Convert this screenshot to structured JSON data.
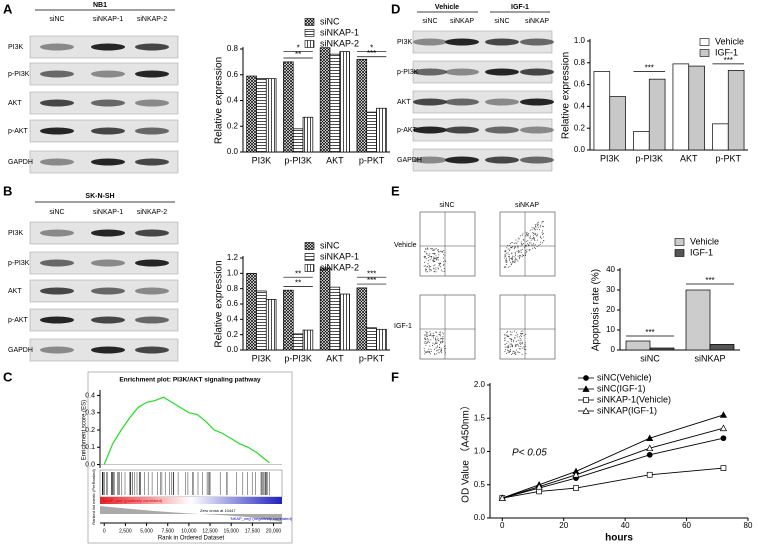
{
  "blots": [
    {
      "panel": "A",
      "header": [
        "NB1"
      ],
      "lanes": [
        "siNC",
        "siNKAP-1",
        "siNKAP-2"
      ],
      "rows": [
        "PI3K",
        "p-PI3K",
        "AKT",
        "p-AKT",
        "GAPDH"
      ]
    },
    {
      "panel": "B",
      "header": [
        "SK-N-SH"
      ],
      "lanes": [
        "siNC",
        "siNKAP-1",
        "siNKAP-2"
      ],
      "rows": [
        "PI3K",
        "p-PI3K",
        "AKT",
        "p-AKT",
        "GAPDH"
      ]
    },
    {
      "panel": "D",
      "header": [
        "Vehicle",
        "IGF-1"
      ],
      "lanes": [
        "siNC",
        "siNKAP",
        "siNC",
        "siNKAP"
      ],
      "rows": [
        "PI3K",
        "p-PI3K",
        "AKT",
        "p-AKT",
        "GAPDH"
      ]
    }
  ],
  "flow": {
    "panel": "E",
    "columns": [
      "siNC",
      "siNKAP"
    ],
    "rows": [
      "Vehicle",
      "IGF-1"
    ]
  },
  "chart_data": [
    {
      "type": "bar",
      "y_label": "Relative expression",
      "categories": [
        "PI3K",
        "p-PI3K",
        "AKT",
        "p-PKT"
      ],
      "series": [
        {
          "name": "siNC",
          "color": "#ffffff",
          "pattern": "crosshatch",
          "values": [
            0.59,
            0.7,
            0.81,
            0.72
          ]
        },
        {
          "name": "siNKAP-1",
          "color": "#ffffff",
          "pattern": "horizontal",
          "values": [
            0.57,
            0.18,
            0.76,
            0.31
          ]
        },
        {
          "name": "siNKAP-2",
          "color": "#ffffff",
          "pattern": "vertical",
          "values": [
            0.57,
            0.27,
            0.78,
            0.34
          ]
        }
      ],
      "ylim": [
        0,
        0.8
      ],
      "yticks": [
        {
          "value": 0,
          "label": "0.0"
        },
        {
          "value": 0.2,
          "label": "0.2"
        },
        {
          "value": 0.4,
          "label": "0.4"
        },
        {
          "value": 0.6,
          "label": "0.6"
        },
        {
          "value": 0.8,
          "label": "0.8"
        }
      ],
      "annotations": [
        "*",
        "**",
        "*",
        "***"
      ]
    },
    {
      "type": "bar",
      "y_label": "Relative expression",
      "categories": [
        "PI3K",
        "p-PI3K",
        "AKT",
        "p-PKT"
      ],
      "series": [
        {
          "name": "siNC",
          "color": "#ffffff",
          "pattern": "crosshatch",
          "values": [
            1.0,
            0.78,
            1.07,
            0.81
          ]
        },
        {
          "name": "siNKAP-1",
          "color": "#ffffff",
          "pattern": "horizontal",
          "values": [
            0.77,
            0.21,
            0.82,
            0.29
          ]
        },
        {
          "name": "siNKAP-2",
          "color": "#ffffff",
          "pattern": "vertical",
          "values": [
            0.66,
            0.26,
            0.73,
            0.27
          ]
        }
      ],
      "ylim": [
        0,
        1.2
      ],
      "yticks": [
        {
          "value": 0,
          "label": "0.0"
        },
        {
          "value": 0.2,
          "label": "0.2"
        },
        {
          "value": 0.4,
          "label": "0.4"
        },
        {
          "value": 0.6,
          "label": "0.6"
        },
        {
          "value": 0.8,
          "label": "0.8"
        },
        {
          "value": 1,
          "label": "1.0"
        },
        {
          "value": 1.2,
          "label": "1.2"
        }
      ],
      "annotations": [
        "**",
        "**",
        "***",
        "***"
      ]
    },
    {
      "type": "bar",
      "y_label": "Relative expression",
      "categories": [
        "PI3K",
        "p-PI3K",
        "AKT",
        "p-PKT"
      ],
      "series": [
        {
          "name": "Vehicle",
          "color": "#ffffff",
          "values": [
            0.72,
            0.17,
            0.79,
            0.24
          ]
        },
        {
          "name": "IGF-1",
          "color": "#c8c8c8",
          "values": [
            0.49,
            0.65,
            0.77,
            0.73
          ]
        }
      ],
      "ylim": [
        0,
        1.0
      ],
      "yticks": [
        {
          "value": 0,
          "label": "0.0"
        },
        {
          "value": 0.2,
          "label": "0.2"
        },
        {
          "value": 0.4,
          "label": "0.4"
        },
        {
          "value": 0.6,
          "label": "0.6"
        },
        {
          "value": 0.8,
          "label": "0.8"
        },
        {
          "value": 1,
          "label": "1.0"
        }
      ],
      "annotations": [
        "***",
        "***"
      ]
    },
    {
      "type": "bar",
      "y_label": "Apoptosis rate (%)",
      "categories": [
        "siNC",
        "siNKAP"
      ],
      "series": [
        {
          "name": "Vehicle",
          "color": "#cccccc",
          "values": [
            4.5,
            30
          ]
        },
        {
          "name": "IGF-1",
          "color": "#555555",
          "values": [
            1,
            2.8
          ]
        }
      ],
      "ylim": [
        0,
        40
      ],
      "yticks": [
        0,
        10,
        20,
        30,
        40
      ],
      "annotations": [
        "***",
        "***"
      ]
    },
    {
      "type": "line",
      "panel": "C",
      "title": "Enrichment plot: PI3K/AKT signaling pathway",
      "y_label": "Enrichment score (ES)",
      "x_label": "Rank in Ordered Dataset",
      "metric_label": "Ranked list metric (PreRanked)",
      "texts": [
        "'NKAP_pos' (positively correlated)",
        "Zero cross at 10447",
        "'NKAP_neg' (negatively correlated)"
      ],
      "x": [
        0,
        1000,
        2000,
        3000,
        4000,
        5000,
        6000,
        7000,
        8000,
        9000,
        10000,
        11000,
        12000,
        13000,
        14000,
        15000,
        16000,
        17000,
        18000,
        19000,
        19500
      ],
      "series": [
        {
          "color": "#22dd22",
          "values": [
            0,
            0.12,
            0.2,
            0.27,
            0.33,
            0.36,
            0.37,
            0.39,
            0.36,
            0.33,
            0.3,
            0.29,
            0.25,
            0.2,
            0.18,
            0.15,
            0.12,
            0.1,
            0.07,
            0.03,
            0.01
          ]
        }
      ],
      "xlim": [
        -500,
        21000
      ],
      "xticks": [
        0,
        {
          "value": 2500,
          "label": "2,500"
        },
        {
          "value": 5000,
          "label": "5,000"
        },
        {
          "value": 7500,
          "label": "7,500"
        },
        {
          "value": 10000,
          "label": "10,000"
        },
        {
          "value": 12500,
          "label": "12,500"
        },
        {
          "value": 15000,
          "label": "15,000"
        },
        {
          "value": 17500,
          "label": "17,500"
        },
        {
          "value": 20000,
          "label": "20,000"
        }
      ],
      "ylim": [
        -0.02,
        0.42
      ],
      "yticks": [
        {
          "value": 0,
          "label": "0.0"
        },
        {
          "value": 0.1,
          "label": "0.1"
        },
        {
          "value": 0.2,
          "label": "0.2"
        },
        {
          "value": 0.3,
          "label": "0.3"
        },
        {
          "value": 0.4,
          "label": "0.4"
        }
      ]
    },
    {
      "type": "line",
      "panel": "F",
      "y_label": "OD Value （A450nm）",
      "x_label": "hours",
      "annotation": "P< 0.05",
      "x": [
        0,
        12,
        24,
        48,
        72
      ],
      "series": [
        {
          "name": "siNC(Vehicle)",
          "color": "#000000",
          "marker": "circle",
          "values": [
            0.3,
            0.45,
            0.6,
            0.95,
            1.2
          ]
        },
        {
          "name": "siNC(IGF-1)",
          "color": "#000000",
          "marker": "triangle",
          "values": [
            0.3,
            0.5,
            0.7,
            1.2,
            1.55
          ]
        },
        {
          "name": "siNKAP-1(Vehicle)",
          "color": "#000000",
          "marker": "square-open",
          "values": [
            0.3,
            0.4,
            0.45,
            0.65,
            0.75
          ]
        },
        {
          "name": "siNKAP(IGF-1)",
          "color": "#000000",
          "marker": "triangle-open",
          "values": [
            0.3,
            0.47,
            0.65,
            1.05,
            1.35
          ]
        }
      ],
      "xlim": [
        -4,
        80
      ],
      "xticks": [
        0,
        20,
        40,
        60,
        80
      ],
      "ylim": [
        0,
        2.0
      ],
      "yticks": [
        {
          "value": 0,
          "label": "0.0"
        },
        {
          "value": 0.5,
          "label": "0.5"
        },
        {
          "value": 1,
          "label": "1.0"
        },
        {
          "value": 1.5,
          "label": "1.5"
        },
        {
          "value": 2,
          "label": "2.0"
        }
      ]
    }
  ]
}
